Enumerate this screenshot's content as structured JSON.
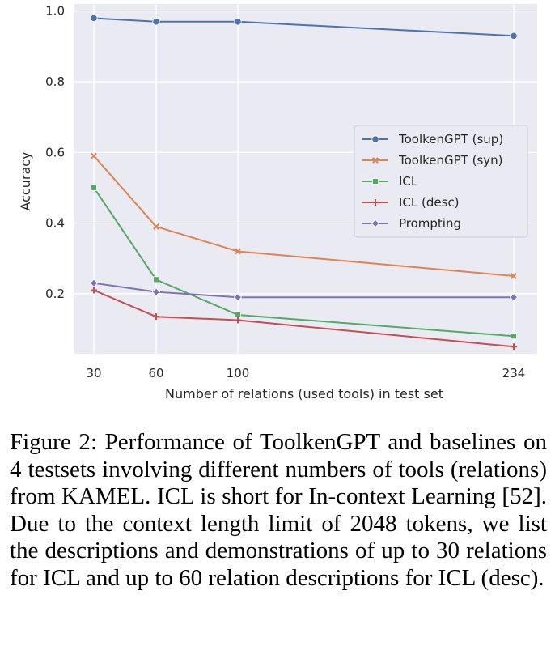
{
  "chart_data": {
    "type": "line",
    "x": [
      30,
      60,
      100,
      234
    ],
    "xticks": [
      "30",
      "60",
      "100",
      "234"
    ],
    "yticks": [
      "0.2",
      "0.4",
      "0.6",
      "0.8",
      "1.0"
    ],
    "xlabel": "Number of relations (used tools) in test set",
    "ylabel": "Accuracy",
    "ylim": [
      0.03,
      1.02
    ],
    "grid": true,
    "legend_position": "right",
    "series": [
      {
        "name": "ToolkenGPT (sup)",
        "color": "#4c72b0",
        "marker": "circle",
        "values": [
          0.98,
          0.97,
          0.97,
          0.93
        ]
      },
      {
        "name": "ToolkenGPT (syn)",
        "color": "#dd8452",
        "marker": "x",
        "values": [
          0.59,
          0.39,
          0.32,
          0.25
        ]
      },
      {
        "name": "ICL",
        "color": "#55a868",
        "marker": "square",
        "values": [
          0.5,
          0.24,
          0.14,
          0.08
        ]
      },
      {
        "name": "ICL (desc)",
        "color": "#c44e52",
        "marker": "plus",
        "values": [
          0.21,
          0.135,
          0.125,
          0.05
        ]
      },
      {
        "name": "Prompting",
        "color": "#8172b3",
        "marker": "diamond",
        "values": [
          0.23,
          0.205,
          0.19,
          0.19
        ]
      }
    ]
  },
  "caption": {
    "label": "Figure 2:",
    "text": "Performance of ToolkenGPT and baselines on 4 testsets involving different numbers of tools (relations) from KAMEL. ICL is short for In-context Learning [52]. Due to the context length limit of 2048 tokens, we list the descriptions and demonstrations of up to 30 relations for ICL and up to 60 relation descriptions for ICL (desc)."
  }
}
